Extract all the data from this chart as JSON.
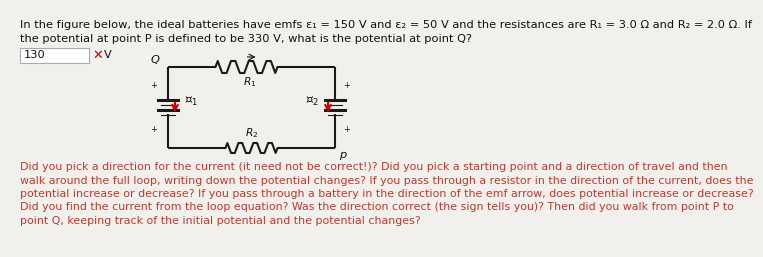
{
  "title_line1": "In the figure below, the ideal batteries have emfs ε₁ = 150 V and ε₂ = 50 V and the resistances are R₁ = 3.0 Ω and R₂ = 2.0 Ω. If",
  "title_line2": "the potential at point P is defined to be 330 V, what is the potential at point Q?",
  "answer_box": "130",
  "answer_unit": "V",
  "wrong_mark": "✕",
  "bg_color": "#f2f0ed",
  "circuit_color": "#1a1a1a",
  "arrow_color": "#cc0000",
  "hint_text_lines": [
    "Did you pick a direction for the current (it need not be correct!)? Did you pick a starting point and a direction of travel and then",
    "walk around the full loop, writing down the potential changes? If you pass through a resistor in the direction of the current, does the",
    "potential increase or decrease? If you pass through a battery in the direction of the emf arrow, does potential increase or decrease?",
    "Did you find the current from the loop equation? Was the direction correct (the sign tells you)? Then did you walk from point P to",
    "point Q, keeping track of the initial potential and the potential changes?"
  ],
  "hint_color": "#c0392b",
  "text_color": "#111111",
  "font_size_main": 8.2,
  "font_size_hint": 7.9
}
